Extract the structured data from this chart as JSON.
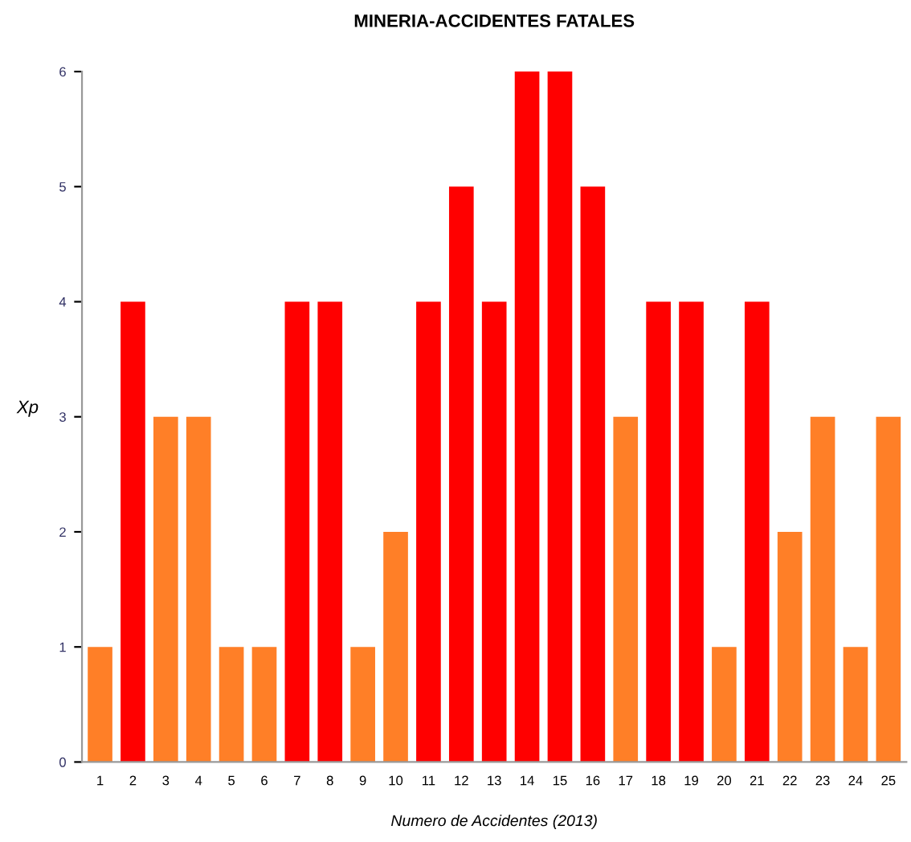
{
  "chart_data": {
    "type": "bar",
    "title": "MINERIA-ACCIDENTES FATALES",
    "xlabel": "Numero de Accidentes (2013)",
    "ylabel": "Xp",
    "categories": [
      "1",
      "2",
      "3",
      "4",
      "5",
      "6",
      "7",
      "8",
      "9",
      "10",
      "11",
      "12",
      "13",
      "14",
      "15",
      "16",
      "17",
      "18",
      "19",
      "20",
      "21",
      "22",
      "23",
      "24",
      "25"
    ],
    "values": [
      1,
      4,
      3,
      3,
      1,
      1,
      4,
      4,
      1,
      2,
      4,
      5,
      4,
      6,
      6,
      5,
      3,
      4,
      4,
      1,
      4,
      2,
      3,
      1,
      3
    ],
    "colors": [
      "#ff7f27",
      "#ff0000",
      "#ff7f27",
      "#ff7f27",
      "#ff7f27",
      "#ff7f27",
      "#ff0000",
      "#ff0000",
      "#ff7f27",
      "#ff7f27",
      "#ff0000",
      "#ff0000",
      "#ff0000",
      "#ff0000",
      "#ff0000",
      "#ff0000",
      "#ff7f27",
      "#ff0000",
      "#ff0000",
      "#ff7f27",
      "#ff0000",
      "#ff7f27",
      "#ff7f27",
      "#ff7f27",
      "#ff7f27"
    ],
    "ylim": [
      0,
      6
    ],
    "yticks": [
      0,
      1,
      2,
      3,
      4,
      5,
      6
    ],
    "grid": false,
    "legend": false
  }
}
